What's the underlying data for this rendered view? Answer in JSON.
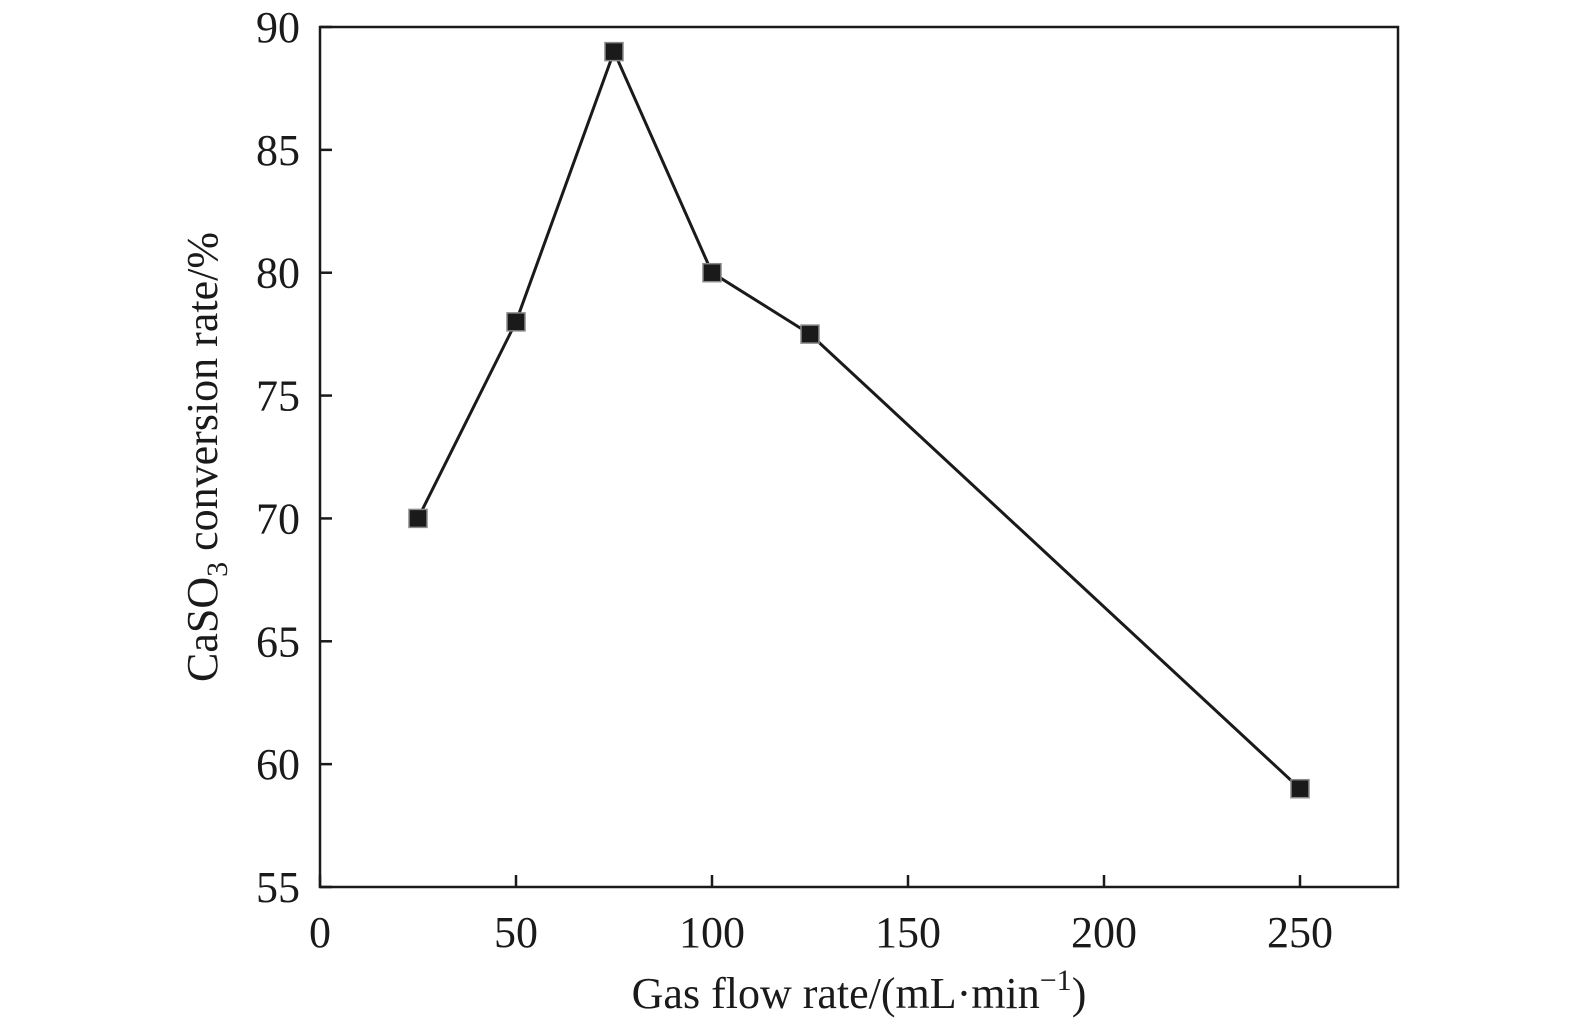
{
  "chart_data": {
    "type": "line",
    "title": "",
    "xlabel": {
      "text": "Gas flow rate/(mL·min",
      "superscript": "−1",
      "suffix": ")"
    },
    "ylabel": {
      "prefix": "CaSO",
      "subscript": "3",
      "suffix": " conversion rate/%"
    },
    "xlim": [
      0,
      275
    ],
    "ylim": [
      55,
      90
    ],
    "xticks": [
      0,
      50,
      100,
      150,
      200,
      250
    ],
    "yticks": [
      55,
      60,
      65,
      70,
      75,
      80,
      85,
      90
    ],
    "grid": false,
    "legend": "none",
    "marker": "square",
    "color": "#1a1a1a",
    "x": [
      25,
      50,
      75,
      100,
      125,
      250
    ],
    "y": [
      70,
      78,
      89,
      80,
      77.5,
      59
    ]
  }
}
